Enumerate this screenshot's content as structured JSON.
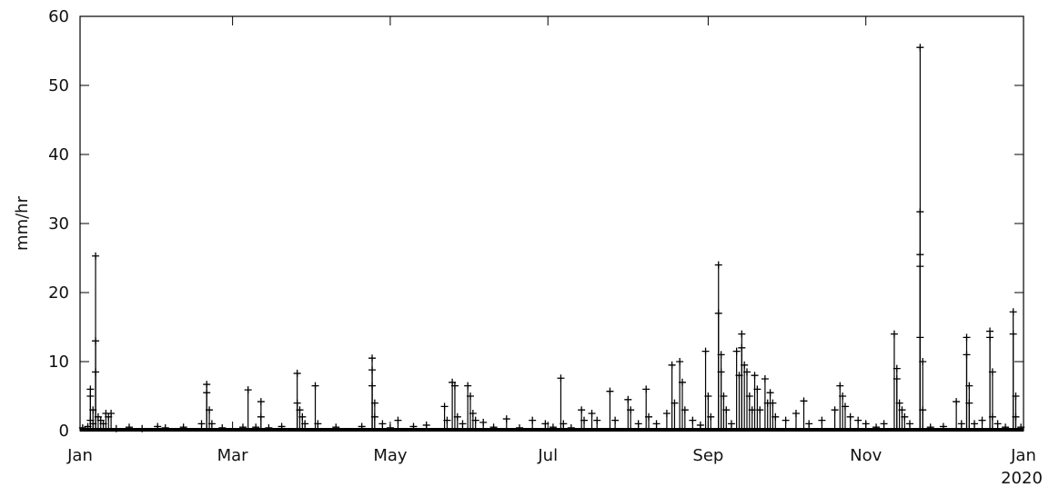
{
  "chart_data": {
    "type": "line",
    "marker": "+",
    "line_color": "#000000",
    "ylabel": "mm/hr",
    "xlabel": "",
    "ylim": [
      0,
      60
    ],
    "xlim": [
      "2019-01-01",
      "2020-01-01"
    ],
    "grid": false,
    "y_ticks": [
      {
        "value": 0,
        "label": "0"
      },
      {
        "value": 10,
        "label": "10"
      },
      {
        "value": 20,
        "label": "20"
      },
      {
        "value": 30,
        "label": "30"
      },
      {
        "value": 40,
        "label": "40"
      },
      {
        "value": 50,
        "label": "50"
      },
      {
        "value": 60,
        "label": "60"
      }
    ],
    "x_ticks": [
      {
        "date": "2019-01-01",
        "label": "Jan"
      },
      {
        "date": "2019-03-01",
        "label": "Mar"
      },
      {
        "date": "2019-05-01",
        "label": "May"
      },
      {
        "date": "2019-07-01",
        "label": "Jul"
      },
      {
        "date": "2019-09-01",
        "label": "Sep"
      },
      {
        "date": "2019-11-01",
        "label": "Nov"
      },
      {
        "date": "2020-01-01",
        "label": "Jan",
        "sublabel": "2020"
      }
    ],
    "series": [
      {
        "points": [
          [
            "2019-01-02",
            0.4
          ],
          [
            "2019-01-04",
            0.6
          ],
          [
            "2019-01-05",
            6
          ],
          [
            "2019-01-05",
            5
          ],
          [
            "2019-01-05",
            1.5
          ],
          [
            "2019-01-06",
            3
          ],
          [
            "2019-01-06",
            1
          ],
          [
            "2019-01-07",
            25.3
          ],
          [
            "2019-01-07",
            13
          ],
          [
            "2019-01-07",
            8.5
          ],
          [
            "2019-01-08",
            2
          ],
          [
            "2019-01-09",
            1.5
          ],
          [
            "2019-01-10",
            1
          ],
          [
            "2019-01-11",
            2.5
          ],
          [
            "2019-01-12",
            2
          ],
          [
            "2019-01-13",
            2.5
          ],
          [
            "2019-01-15",
            0.3
          ],
          [
            "2019-01-20",
            0.5
          ],
          [
            "2019-01-25",
            0.3
          ],
          [
            "2019-01-31",
            0.6
          ],
          [
            "2019-02-03",
            0.4
          ],
          [
            "2019-02-10",
            0.5
          ],
          [
            "2019-02-17",
            1
          ],
          [
            "2019-02-19",
            6.7
          ],
          [
            "2019-02-19",
            5.5
          ],
          [
            "2019-02-20",
            3
          ],
          [
            "2019-02-21",
            1
          ],
          [
            "2019-02-25",
            0.4
          ],
          [
            "2019-03-05",
            0.5
          ],
          [
            "2019-03-07",
            5.9
          ],
          [
            "2019-03-10",
            0.5
          ],
          [
            "2019-03-12",
            4.2
          ],
          [
            "2019-03-12",
            2
          ],
          [
            "2019-03-15",
            0.4
          ],
          [
            "2019-03-20",
            0.6
          ],
          [
            "2019-03-26",
            8.3
          ],
          [
            "2019-03-26",
            4
          ],
          [
            "2019-03-27",
            3
          ],
          [
            "2019-03-28",
            2
          ],
          [
            "2019-03-29",
            1
          ],
          [
            "2019-04-02",
            6.5
          ],
          [
            "2019-04-03",
            1
          ],
          [
            "2019-04-10",
            0.5
          ],
          [
            "2019-04-20",
            0.6
          ],
          [
            "2019-04-24",
            10.5
          ],
          [
            "2019-04-24",
            8.8
          ],
          [
            "2019-04-24",
            6.5
          ],
          [
            "2019-04-25",
            4
          ],
          [
            "2019-04-25",
            2
          ],
          [
            "2019-04-28",
            1
          ],
          [
            "2019-05-01",
            0.4
          ],
          [
            "2019-05-04",
            1.5
          ],
          [
            "2019-05-10",
            0.6
          ],
          [
            "2019-05-15",
            0.8
          ],
          [
            "2019-05-22",
            3.5
          ],
          [
            "2019-05-23",
            1.5
          ],
          [
            "2019-05-25",
            7
          ],
          [
            "2019-05-26",
            6.5
          ],
          [
            "2019-05-27",
            2
          ],
          [
            "2019-05-29",
            1
          ],
          [
            "2019-05-31",
            6.5
          ],
          [
            "2019-06-01",
            5
          ],
          [
            "2019-06-02",
            2.5
          ],
          [
            "2019-06-03",
            1.5
          ],
          [
            "2019-06-06",
            1.2
          ],
          [
            "2019-06-10",
            0.5
          ],
          [
            "2019-06-15",
            1.7
          ],
          [
            "2019-06-20",
            0.4
          ],
          [
            "2019-06-25",
            1.5
          ],
          [
            "2019-06-30",
            1
          ],
          [
            "2019-07-03",
            0.5
          ],
          [
            "2019-07-06",
            7.6
          ],
          [
            "2019-07-07",
            1
          ],
          [
            "2019-07-10",
            0.4
          ],
          [
            "2019-07-14",
            3
          ],
          [
            "2019-07-15",
            1.5
          ],
          [
            "2019-07-18",
            2.5
          ],
          [
            "2019-07-20",
            1.5
          ],
          [
            "2019-07-25",
            5.7
          ],
          [
            "2019-07-27",
            1.5
          ],
          [
            "2019-08-01",
            4.5
          ],
          [
            "2019-08-02",
            3
          ],
          [
            "2019-08-05",
            1
          ],
          [
            "2019-08-08",
            6
          ],
          [
            "2019-08-09",
            2
          ],
          [
            "2019-08-12",
            1
          ],
          [
            "2019-08-16",
            2.5
          ],
          [
            "2019-08-18",
            9.5
          ],
          [
            "2019-08-19",
            4
          ],
          [
            "2019-08-21",
            10
          ],
          [
            "2019-08-22",
            7
          ],
          [
            "2019-08-23",
            3
          ],
          [
            "2019-08-26",
            1.5
          ],
          [
            "2019-08-29",
            0.8
          ],
          [
            "2019-08-31",
            11.5
          ],
          [
            "2019-09-01",
            5
          ],
          [
            "2019-09-02",
            2
          ],
          [
            "2019-09-05",
            24
          ],
          [
            "2019-09-05",
            17
          ],
          [
            "2019-09-06",
            11
          ],
          [
            "2019-09-06",
            8.5
          ],
          [
            "2019-09-07",
            5
          ],
          [
            "2019-09-08",
            3
          ],
          [
            "2019-09-10",
            1
          ],
          [
            "2019-09-12",
            11.5
          ],
          [
            "2019-09-13",
            8
          ],
          [
            "2019-09-14",
            14
          ],
          [
            "2019-09-14",
            12
          ],
          [
            "2019-09-15",
            9.5
          ],
          [
            "2019-09-16",
            8.5
          ],
          [
            "2019-09-17",
            5
          ],
          [
            "2019-09-18",
            3
          ],
          [
            "2019-09-19",
            8
          ],
          [
            "2019-09-20",
            6
          ],
          [
            "2019-09-21",
            3
          ],
          [
            "2019-09-23",
            7.5
          ],
          [
            "2019-09-24",
            4
          ],
          [
            "2019-09-25",
            5.5
          ],
          [
            "2019-09-26",
            4
          ],
          [
            "2019-09-27",
            2
          ],
          [
            "2019-10-01",
            1.5
          ],
          [
            "2019-10-05",
            2.5
          ],
          [
            "2019-10-08",
            4.3
          ],
          [
            "2019-10-10",
            1
          ],
          [
            "2019-10-15",
            1.5
          ],
          [
            "2019-10-20",
            3
          ],
          [
            "2019-10-22",
            6.5
          ],
          [
            "2019-10-23",
            5
          ],
          [
            "2019-10-24",
            3.5
          ],
          [
            "2019-10-26",
            2
          ],
          [
            "2019-10-29",
            1.5
          ],
          [
            "2019-11-01",
            1
          ],
          [
            "2019-11-05",
            0.5
          ],
          [
            "2019-11-08",
            1
          ],
          [
            "2019-11-12",
            14
          ],
          [
            "2019-11-13",
            9
          ],
          [
            "2019-11-13",
            7.5
          ],
          [
            "2019-11-14",
            4
          ],
          [
            "2019-11-15",
            3
          ],
          [
            "2019-11-16",
            2
          ],
          [
            "2019-11-18",
            1
          ],
          [
            "2019-11-22",
            55.5
          ],
          [
            "2019-11-22",
            31.7
          ],
          [
            "2019-11-22",
            25.5
          ],
          [
            "2019-11-22",
            23.8
          ],
          [
            "2019-11-22",
            13.5
          ],
          [
            "2019-11-23",
            10
          ],
          [
            "2019-11-23",
            3
          ],
          [
            "2019-11-26",
            0.5
          ],
          [
            "2019-12-01",
            0.6
          ],
          [
            "2019-12-06",
            4.2
          ],
          [
            "2019-12-08",
            1
          ],
          [
            "2019-12-10",
            13.5
          ],
          [
            "2019-12-10",
            11
          ],
          [
            "2019-12-11",
            6.5
          ],
          [
            "2019-12-11",
            4
          ],
          [
            "2019-12-13",
            1
          ],
          [
            "2019-12-16",
            1.5
          ],
          [
            "2019-12-19",
            14.4
          ],
          [
            "2019-12-19",
            13.5
          ],
          [
            "2019-12-20",
            8.5
          ],
          [
            "2019-12-20",
            2
          ],
          [
            "2019-12-22",
            1
          ],
          [
            "2019-12-25",
            0.5
          ],
          [
            "2019-12-28",
            17.2
          ],
          [
            "2019-12-28",
            14
          ],
          [
            "2019-12-29",
            5
          ],
          [
            "2019-12-29",
            2
          ],
          [
            "2019-12-31",
            0.5
          ]
        ]
      }
    ]
  }
}
